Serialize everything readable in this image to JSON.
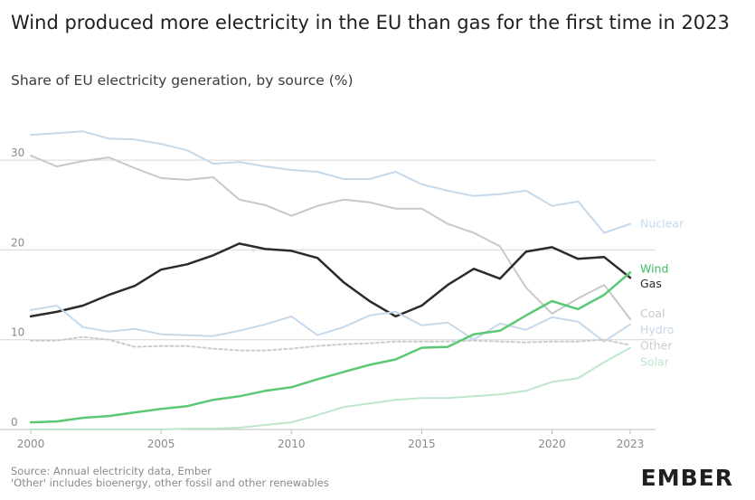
{
  "title": "Wind produced more electricity in the EU than gas for the first time in 2023",
  "subtitle": "Share of EU electricity generation, by source (%)",
  "footnote": {
    "source": "Source: Annual electricity data, Ember",
    "note": "'Other' includes bioenergy, other fossil and other renewables"
  },
  "brand": {
    "text": "EMBER",
    "accent_letter": "E"
  },
  "chart_data": {
    "type": "line",
    "x": [
      2000,
      2001,
      2002,
      2003,
      2004,
      2005,
      2006,
      2007,
      2008,
      2009,
      2010,
      2011,
      2012,
      2013,
      2014,
      2015,
      2016,
      2017,
      2018,
      2019,
      2020,
      2021,
      2022,
      2023
    ],
    "xlim": [
      2000,
      2023
    ],
    "ylim": [
      0,
      34
    ],
    "xticks": [
      "2000",
      "2005",
      "2010",
      "2015",
      "2020",
      "2023"
    ],
    "yticks": [
      "0",
      "10",
      "20",
      "30"
    ],
    "grid": true,
    "legend": "inline labels at line ends",
    "series": [
      {
        "name": "Nuclear",
        "color": "#c5d9ea",
        "dashed": false,
        "width": 2,
        "values": [
          32.8,
          33.0,
          33.2,
          32.4,
          32.3,
          31.8,
          31.1,
          29.6,
          29.8,
          29.3,
          28.9,
          28.7,
          27.9,
          27.9,
          28.7,
          27.3,
          26.6,
          26.0,
          26.2,
          26.6,
          24.9,
          25.4,
          21.9,
          22.9
        ]
      },
      {
        "name": "Coal",
        "color": "#c8c8c8",
        "dashed": false,
        "width": 2,
        "values": [
          30.5,
          29.3,
          29.9,
          30.3,
          29.1,
          28.0,
          27.8,
          28.1,
          25.6,
          25.0,
          23.8,
          24.9,
          25.6,
          25.3,
          24.6,
          24.6,
          22.9,
          21.9,
          20.4,
          15.8,
          12.9,
          14.6,
          16.1,
          12.3
        ]
      },
      {
        "name": "Gas",
        "color": "#2b2b2b",
        "dashed": false,
        "width": 2.5,
        "values": [
          12.6,
          13.1,
          13.8,
          15.0,
          16.0,
          17.8,
          18.4,
          19.4,
          20.7,
          20.1,
          19.9,
          19.1,
          16.4,
          14.3,
          12.6,
          13.8,
          16.1,
          17.9,
          16.8,
          19.8,
          20.3,
          19.0,
          19.2,
          16.9
        ]
      },
      {
        "name": "Hydro",
        "color": "#c5d9ea",
        "dashed": false,
        "width": 2,
        "values": [
          13.3,
          13.8,
          11.4,
          10.9,
          11.2,
          10.6,
          10.5,
          10.4,
          11.0,
          11.7,
          12.6,
          10.5,
          11.4,
          12.7,
          13.1,
          11.6,
          11.9,
          10.0,
          11.8,
          11.1,
          12.5,
          12.0,
          9.8,
          11.7
        ]
      },
      {
        "name": "Other",
        "color": "#cccccc",
        "dashed": true,
        "width": 2,
        "values": [
          9.9,
          9.9,
          10.3,
          10.0,
          9.2,
          9.3,
          9.3,
          9.0,
          8.8,
          8.8,
          9.0,
          9.3,
          9.5,
          9.6,
          9.8,
          9.8,
          9.8,
          9.9,
          9.8,
          9.7,
          9.8,
          9.8,
          10.0,
          9.4
        ]
      },
      {
        "name": "Wind",
        "color": "#5cc874",
        "dashed": false,
        "width": 2.5,
        "values": [
          0.8,
          0.9,
          1.3,
          1.5,
          1.9,
          2.3,
          2.6,
          3.3,
          3.7,
          4.3,
          4.7,
          5.6,
          6.4,
          7.2,
          7.8,
          9.1,
          9.2,
          10.6,
          11.0,
          12.7,
          14.3,
          13.4,
          15.0,
          17.5
        ]
      },
      {
        "name": "Solar",
        "color": "#bfe6cd",
        "dashed": false,
        "width": 2,
        "values": [
          0.0,
          0.0,
          0.0,
          0.0,
          0.0,
          0.0,
          0.1,
          0.1,
          0.2,
          0.5,
          0.8,
          1.6,
          2.5,
          2.9,
          3.3,
          3.5,
          3.5,
          3.7,
          3.9,
          4.3,
          5.3,
          5.7,
          7.5,
          9.1
        ]
      }
    ],
    "end_labels": [
      {
        "name": "Nuclear",
        "color": "#c5d9ea",
        "label_y": 22.9
      },
      {
        "name": "Wind",
        "color": "#3dbf5f",
        "label_y": 17.9
      },
      {
        "name": "Gas",
        "color": "#2b2b2b",
        "label_y": 16.2
      },
      {
        "name": "Coal",
        "color": "#c8c8c8",
        "label_y": 12.9
      },
      {
        "name": "Hydro",
        "color": "#c5d9ea",
        "label_y": 11.1
      },
      {
        "name": "Other",
        "color": "#cccccc",
        "label_y": 9.3
      },
      {
        "name": "Solar",
        "color": "#bfe6cd",
        "label_y": 7.5
      }
    ]
  }
}
